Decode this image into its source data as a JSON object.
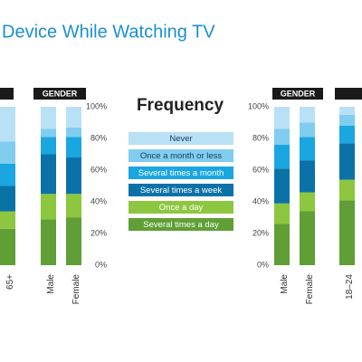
{
  "title": "Device While Watching TV",
  "chart_data": [
    {
      "type": "bar",
      "stacked": true,
      "groups": [
        null,
        "GENDER"
      ],
      "categories": [
        "65+",
        "Male",
        "Female"
      ],
      "legend_title": "Frequency",
      "series": [
        {
          "name": "Several times a day",
          "color": "#5f9f35",
          "values": [
            23,
            29,
            30
          ]
        },
        {
          "name": "Once a day",
          "color": "#8dc63f",
          "values": [
            11,
            16,
            15
          ]
        },
        {
          "name": "Several times a week",
          "color": "#0b72a8",
          "values": [
            16,
            25,
            23
          ]
        },
        {
          "name": "Several times a month",
          "color": "#1aa6e0",
          "values": [
            14,
            11,
            13
          ]
        },
        {
          "name": "Once a month or less",
          "color": "#80cdf0",
          "values": [
            14,
            5,
            6
          ]
        },
        {
          "name": "Never",
          "color": "#b8e1f5",
          "values": [
            22,
            14,
            13
          ]
        }
      ],
      "ylim": [
        0,
        100
      ],
      "yticks": [
        {
          "value": 0,
          "label": "0%"
        },
        {
          "value": 20,
          "label": "20%"
        },
        {
          "value": 40,
          "label": "40%"
        },
        {
          "value": 60,
          "label": "60%"
        },
        {
          "value": 80,
          "label": "80%"
        },
        {
          "value": 100,
          "label": "100%"
        }
      ]
    },
    {
      "type": "bar",
      "stacked": true,
      "groups": [
        "GENDER",
        null
      ],
      "categories": [
        "Male",
        "Female",
        "18–24"
      ],
      "series": [
        {
          "values": [
            26,
            34,
            41
          ]
        },
        {
          "values": [
            13,
            12,
            13
          ]
        },
        {
          "values": [
            22,
            20,
            23
          ]
        },
        {
          "values": [
            15,
            15,
            11
          ]
        },
        {
          "values": [
            10,
            9,
            7
          ]
        },
        {
          "values": [
            14,
            10,
            5
          ]
        }
      ],
      "ylim": [
        0,
        100
      ],
      "yticks": [
        {
          "value": 0,
          "label": "0%"
        },
        {
          "value": 20,
          "label": "20%"
        },
        {
          "value": 40,
          "label": "40%"
        },
        {
          "value": 60,
          "label": "60%"
        },
        {
          "value": 80,
          "label": "80%"
        },
        {
          "value": 100,
          "label": "100%"
        }
      ]
    }
  ]
}
